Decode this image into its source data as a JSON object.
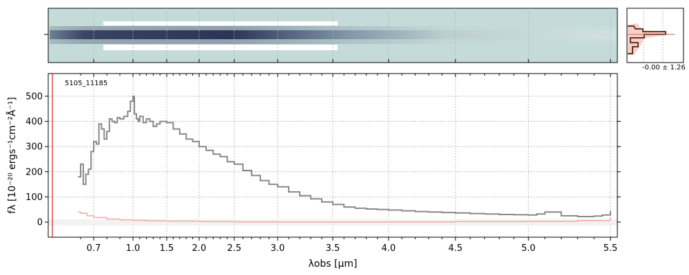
{
  "chart_data": [
    {
      "type": "heatmap",
      "name": "2D spectrum",
      "description_colormap": "bone-like (dark navy trace on pale teal background)",
      "x_range": [
        0.55,
        5.52
      ]
    },
    {
      "type": "line",
      "annotation": "5105_11185",
      "xlabel": "λobs [μm]",
      "ylabel": "fλ [10⁻²⁰ ergs⁻¹cm⁻²Å⁻¹]",
      "xlim": [
        0.55,
        5.52
      ],
      "ylim": [
        -60,
        590
      ],
      "x_scale": "reciprocal-like (wavelength^-1 stretched)",
      "grid": true,
      "x_ticks": [
        0.7,
        1.0,
        1.5,
        2.0,
        2.5,
        3.0,
        3.5,
        4.0,
        4.5,
        5.0,
        5.5
      ],
      "x_tick_labels": [
        "0.7",
        "1.0",
        "1.5",
        "2.0",
        "2.5",
        "3.0",
        "3.5",
        "4.0",
        "4.5",
        "5.0",
        "5.5"
      ],
      "y_ticks": [
        0,
        100,
        200,
        300,
        400,
        500
      ],
      "y_tick_labels": [
        "0",
        "100",
        "200",
        "300",
        "400",
        "500"
      ],
      "series": [
        {
          "color": "#888888",
          "x": [
            0.58,
            0.6,
            0.62,
            0.64,
            0.66,
            0.68,
            0.7,
            0.72,
            0.74,
            0.76,
            0.78,
            0.8,
            0.82,
            0.84,
            0.86,
            0.88,
            0.9,
            0.93,
            0.96,
            0.98,
            1.0,
            1.02,
            1.05,
            1.08,
            1.1,
            1.15,
            1.2,
            1.25,
            1.3,
            1.35,
            1.4,
            1.5,
            1.6,
            1.7,
            1.8,
            1.9,
            2.0,
            2.1,
            2.2,
            2.3,
            2.4,
            2.5,
            2.6,
            2.7,
            2.8,
            2.9,
            3.0,
            3.1,
            3.2,
            3.3,
            3.4,
            3.5,
            3.6,
            3.7,
            3.8,
            3.9,
            4.0,
            4.1,
            4.2,
            4.3,
            4.4,
            4.5,
            4.6,
            4.7,
            4.8,
            4.9,
            5.0,
            5.05,
            5.1,
            5.2,
            5.3,
            5.4,
            5.45,
            5.5
          ],
          "y": [
            180,
            230,
            150,
            190,
            210,
            280,
            320,
            310,
            390,
            370,
            330,
            360,
            410,
            400,
            395,
            415,
            410,
            420,
            440,
            480,
            500,
            430,
            410,
            400,
            420,
            395,
            410,
            400,
            380,
            390,
            400,
            395,
            370,
            350,
            330,
            320,
            300,
            285,
            270,
            260,
            240,
            230,
            205,
            185,
            165,
            150,
            140,
            120,
            105,
            92,
            80,
            70,
            60,
            55,
            52,
            50,
            48,
            45,
            42,
            40,
            38,
            36,
            34,
            32,
            30,
            29,
            28,
            32,
            40,
            25,
            22,
            24,
            28,
            45
          ]
        },
        {
          "color": "#f4a6a6",
          "x": [
            0.58,
            0.6,
            0.65,
            0.7,
            0.8,
            0.9,
            1.0,
            1.2,
            1.5,
            2.0,
            2.5,
            3.0,
            3.5,
            4.0,
            4.5,
            5.0,
            5.3,
            5.5
          ],
          "y": [
            40,
            35,
            25,
            18,
            12,
            9,
            7,
            5,
            4,
            2,
            1,
            0,
            0,
            1,
            2,
            3,
            6,
            18
          ]
        }
      ]
    },
    {
      "type": "line",
      "name": "cross-dispersion profile",
      "annotation": "-0.00 ± 1.26"
    }
  ]
}
